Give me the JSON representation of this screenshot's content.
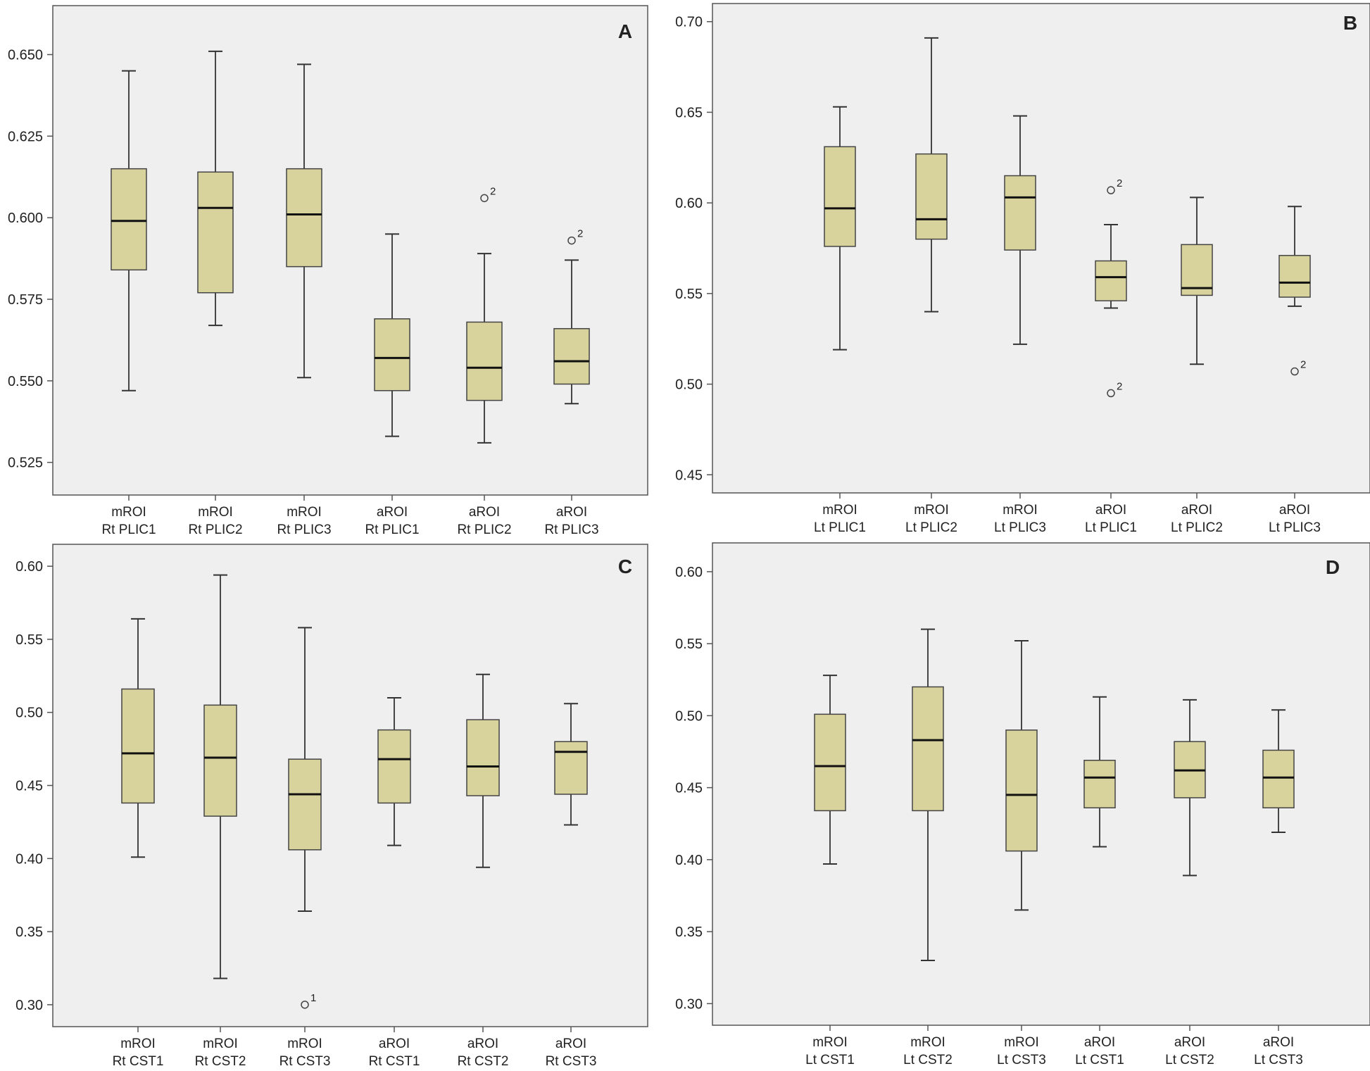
{
  "colors": {
    "plot_bg": "#efefef",
    "box_fill": "#d8d29c",
    "frame": "#555555",
    "text": "#222222"
  },
  "chart_data": [
    {
      "type": "box",
      "panel_label": "A",
      "ylim": [
        0.515,
        0.665
      ],
      "yticks": [
        "0.525",
        "0.550",
        "0.575",
        "0.600",
        "0.625",
        "0.650"
      ],
      "categories": [
        [
          "mROI",
          "Rt PLIC1"
        ],
        [
          "mROI",
          "Rt PLIC2"
        ],
        [
          "mROI",
          "Rt PLIC3"
        ],
        [
          "aROI",
          "Rt PLIC1"
        ],
        [
          "aROI",
          "Rt PLIC2"
        ],
        [
          "aROI",
          "Rt PLIC3"
        ]
      ],
      "boxes": [
        {
          "min": 0.547,
          "q1": 0.584,
          "median": 0.599,
          "q3": 0.615,
          "max": 0.645,
          "outliers": []
        },
        {
          "min": 0.567,
          "q1": 0.577,
          "median": 0.603,
          "q3": 0.614,
          "max": 0.651,
          "outliers": []
        },
        {
          "min": 0.551,
          "q1": 0.585,
          "median": 0.601,
          "q3": 0.615,
          "max": 0.647,
          "outliers": []
        },
        {
          "min": 0.533,
          "q1": 0.547,
          "median": 0.557,
          "q3": 0.569,
          "max": 0.595,
          "outliers": []
        },
        {
          "min": 0.531,
          "q1": 0.544,
          "median": 0.554,
          "q3": 0.568,
          "max": 0.589,
          "outliers": [
            {
              "value": 0.606,
              "label": "2"
            }
          ]
        },
        {
          "min": 0.543,
          "q1": 0.549,
          "median": 0.556,
          "q3": 0.566,
          "max": 0.587,
          "outliers": [
            {
              "value": 0.593,
              "label": "2"
            }
          ]
        }
      ]
    },
    {
      "type": "box",
      "panel_label": "B",
      "ylim": [
        0.44,
        0.71
      ],
      "yticks": [
        "0.45",
        "0.50",
        "0.55",
        "0.60",
        "0.65",
        "0.70"
      ],
      "categories": [
        [
          "mROI",
          "Lt PLIC1"
        ],
        [
          "mROI",
          "Lt PLIC2"
        ],
        [
          "mROI",
          "Lt PLIC3"
        ],
        [
          "aROI",
          "Lt PLIC1"
        ],
        [
          "aROI",
          "Lt PLIC2"
        ],
        [
          "aROI",
          "Lt PLIC3"
        ]
      ],
      "boxes": [
        {
          "min": 0.519,
          "q1": 0.576,
          "median": 0.597,
          "q3": 0.631,
          "max": 0.653,
          "outliers": []
        },
        {
          "min": 0.54,
          "q1": 0.58,
          "median": 0.591,
          "q3": 0.627,
          "max": 0.691,
          "outliers": []
        },
        {
          "min": 0.522,
          "q1": 0.574,
          "median": 0.603,
          "q3": 0.615,
          "max": 0.648,
          "outliers": []
        },
        {
          "min": 0.542,
          "q1": 0.546,
          "median": 0.559,
          "q3": 0.568,
          "max": 0.588,
          "outliers": [
            {
              "value": 0.607,
              "label": "2"
            },
            {
              "value": 0.495,
              "label": "2"
            }
          ]
        },
        {
          "min": 0.511,
          "q1": 0.549,
          "median": 0.553,
          "q3": 0.577,
          "max": 0.603,
          "outliers": []
        },
        {
          "min": 0.543,
          "q1": 0.548,
          "median": 0.556,
          "q3": 0.571,
          "max": 0.598,
          "outliers": [
            {
              "value": 0.507,
              "label": "2"
            }
          ]
        }
      ]
    },
    {
      "type": "box",
      "panel_label": "C",
      "ylim": [
        0.285,
        0.615
      ],
      "yticks": [
        "0.30",
        "0.35",
        "0.40",
        "0.45",
        "0.50",
        "0.55",
        "0.60"
      ],
      "categories": [
        [
          "mROI",
          "Rt CST1"
        ],
        [
          "mROI",
          "Rt CST2"
        ],
        [
          "mROI",
          "Rt CST3"
        ],
        [
          "aROI",
          "Rt CST1"
        ],
        [
          "aROI",
          "Rt CST2"
        ],
        [
          "aROI",
          "Rt CST3"
        ]
      ],
      "boxes": [
        {
          "min": 0.401,
          "q1": 0.438,
          "median": 0.472,
          "q3": 0.516,
          "max": 0.564,
          "outliers": []
        },
        {
          "min": 0.318,
          "q1": 0.429,
          "median": 0.469,
          "q3": 0.505,
          "max": 0.594,
          "outliers": []
        },
        {
          "min": 0.364,
          "q1": 0.406,
          "median": 0.444,
          "q3": 0.468,
          "max": 0.558,
          "outliers": [
            {
              "value": 0.3,
              "label": "1"
            }
          ]
        },
        {
          "min": 0.409,
          "q1": 0.438,
          "median": 0.468,
          "q3": 0.488,
          "max": 0.51,
          "outliers": []
        },
        {
          "min": 0.394,
          "q1": 0.443,
          "median": 0.463,
          "q3": 0.495,
          "max": 0.526,
          "outliers": []
        },
        {
          "min": 0.423,
          "q1": 0.444,
          "median": 0.473,
          "q3": 0.48,
          "max": 0.506,
          "outliers": []
        }
      ]
    },
    {
      "type": "box",
      "panel_label": "D",
      "ylim": [
        0.285,
        0.62
      ],
      "yticks": [
        "0.30",
        "0.35",
        "0.40",
        "0.45",
        "0.50",
        "0.55",
        "0.60"
      ],
      "categories": [
        [
          "mROI",
          "Lt CST1"
        ],
        [
          "mROI",
          "Lt CST2"
        ],
        [
          "mROI",
          "Lt CST3"
        ],
        [
          "aROI",
          "Lt CST1"
        ],
        [
          "aROI",
          "Lt CST2"
        ],
        [
          "aROI",
          "Lt CST3"
        ]
      ],
      "boxes": [
        {
          "min": 0.397,
          "q1": 0.434,
          "median": 0.465,
          "q3": 0.501,
          "max": 0.528,
          "outliers": []
        },
        {
          "min": 0.33,
          "q1": 0.434,
          "median": 0.483,
          "q3": 0.52,
          "max": 0.56,
          "outliers": []
        },
        {
          "min": 0.365,
          "q1": 0.406,
          "median": 0.445,
          "q3": 0.49,
          "max": 0.552,
          "outliers": []
        },
        {
          "min": 0.409,
          "q1": 0.436,
          "median": 0.457,
          "q3": 0.469,
          "max": 0.513,
          "outliers": []
        },
        {
          "min": 0.389,
          "q1": 0.443,
          "median": 0.462,
          "q3": 0.482,
          "max": 0.511,
          "outliers": []
        },
        {
          "min": 0.419,
          "q1": 0.436,
          "median": 0.457,
          "q3": 0.476,
          "max": 0.504,
          "outliers": []
        }
      ]
    }
  ]
}
